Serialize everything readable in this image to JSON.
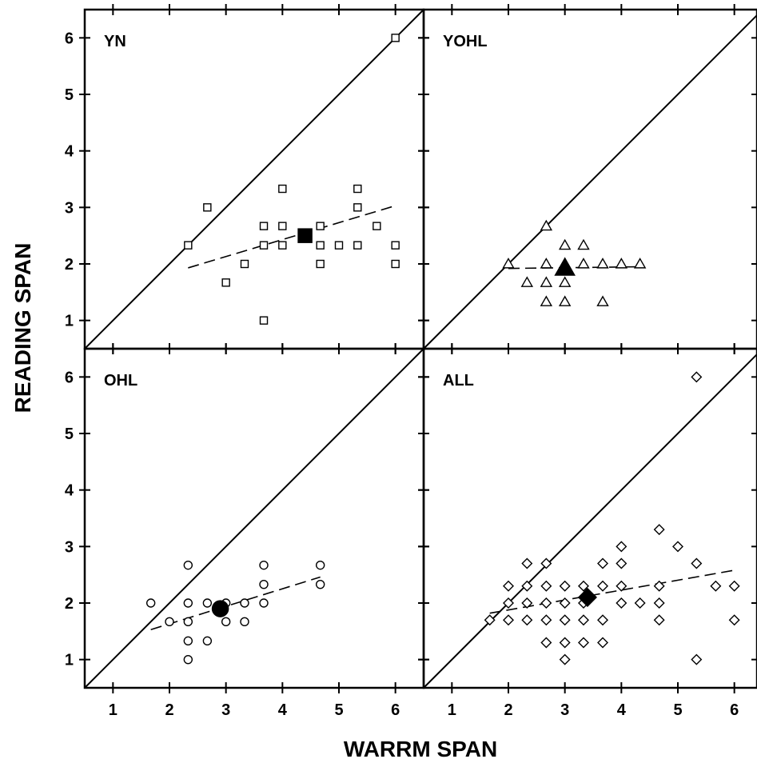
{
  "chart_data": {
    "type": "scatter",
    "xlabel": "WARRM SPAN",
    "ylabel": "READING SPAN",
    "xlim": [
      0.5,
      6.5
    ],
    "ylim": [
      0.5,
      6.5
    ],
    "xticks": [
      1,
      2,
      3,
      4,
      5,
      6
    ],
    "yticks": [
      1,
      2,
      3,
      4,
      5,
      6
    ],
    "grid": false,
    "identity_line": true,
    "panels": [
      {
        "label": "YN",
        "marker": "square",
        "points": [
          [
            2.33,
            2.33
          ],
          [
            2.67,
            3.0
          ],
          [
            3.0,
            1.67
          ],
          [
            3.33,
            2.0
          ],
          [
            3.67,
            2.33
          ],
          [
            3.67,
            2.67
          ],
          [
            3.67,
            1.0
          ],
          [
            4.0,
            2.33
          ],
          [
            4.0,
            2.67
          ],
          [
            4.0,
            3.33
          ],
          [
            4.67,
            2.33
          ],
          [
            4.67,
            2.67
          ],
          [
            4.67,
            2.0
          ],
          [
            5.0,
            2.33
          ],
          [
            5.33,
            2.33
          ],
          [
            5.33,
            3.0
          ],
          [
            5.33,
            3.33
          ],
          [
            5.67,
            2.67
          ],
          [
            6.0,
            2.33
          ],
          [
            6.0,
            2.0
          ],
          [
            6.0,
            6.0
          ]
        ],
        "mean": [
          4.4,
          2.5
        ],
        "fit": [
          [
            2.33,
            1.93
          ],
          [
            6.0,
            3.03
          ]
        ]
      },
      {
        "label": "YOHL",
        "marker": "triangle",
        "points": [
          [
            2.0,
            2.0
          ],
          [
            2.33,
            1.67
          ],
          [
            2.67,
            1.33
          ],
          [
            2.67,
            1.67
          ],
          [
            2.67,
            2.0
          ],
          [
            2.67,
            2.67
          ],
          [
            3.0,
            1.33
          ],
          [
            3.0,
            1.67
          ],
          [
            3.0,
            2.0
          ],
          [
            3.0,
            2.33
          ],
          [
            3.33,
            2.0
          ],
          [
            3.33,
            2.33
          ],
          [
            3.67,
            1.33
          ],
          [
            3.67,
            2.0
          ],
          [
            4.0,
            2.0
          ],
          [
            4.33,
            2.0
          ]
        ],
        "mean": [
          3.0,
          1.93
        ],
        "fit": [
          [
            2.0,
            1.92
          ],
          [
            4.33,
            1.95
          ]
        ]
      },
      {
        "label": "OHL",
        "marker": "circle",
        "points": [
          [
            1.67,
            2.0
          ],
          [
            2.0,
            1.67
          ],
          [
            2.33,
            2.67
          ],
          [
            2.33,
            2.0
          ],
          [
            2.33,
            1.67
          ],
          [
            2.33,
            1.33
          ],
          [
            2.33,
            1.0
          ],
          [
            2.67,
            2.0
          ],
          [
            2.67,
            1.33
          ],
          [
            3.0,
            2.0
          ],
          [
            3.0,
            1.67
          ],
          [
            3.33,
            2.0
          ],
          [
            3.33,
            1.67
          ],
          [
            3.67,
            2.67
          ],
          [
            3.67,
            2.33
          ],
          [
            3.67,
            2.0
          ],
          [
            4.67,
            2.67
          ],
          [
            4.67,
            2.33
          ]
        ],
        "mean": [
          2.9,
          1.9
        ],
        "fit": [
          [
            1.67,
            1.53
          ],
          [
            4.67,
            2.46
          ]
        ]
      },
      {
        "label": "ALL",
        "marker": "diamond",
        "points": [
          [
            1.67,
            1.7
          ],
          [
            2.0,
            1.7
          ],
          [
            2.0,
            2.0
          ],
          [
            2.0,
            2.3
          ],
          [
            2.33,
            1.7
          ],
          [
            2.33,
            2.0
          ],
          [
            2.33,
            2.3
          ],
          [
            2.33,
            2.7
          ],
          [
            2.67,
            1.3
          ],
          [
            2.67,
            1.7
          ],
          [
            2.67,
            2.0
          ],
          [
            2.67,
            2.3
          ],
          [
            2.67,
            2.7
          ],
          [
            3.0,
            1.0
          ],
          [
            3.0,
            1.3
          ],
          [
            3.0,
            1.7
          ],
          [
            3.0,
            2.0
          ],
          [
            3.0,
            2.3
          ],
          [
            3.33,
            1.3
          ],
          [
            3.33,
            1.7
          ],
          [
            3.33,
            2.0
          ],
          [
            3.33,
            2.3
          ],
          [
            3.67,
            1.3
          ],
          [
            3.67,
            1.7
          ],
          [
            3.67,
            2.3
          ],
          [
            3.67,
            2.7
          ],
          [
            4.0,
            2.0
          ],
          [
            4.0,
            2.3
          ],
          [
            4.0,
            2.7
          ],
          [
            4.0,
            3.0
          ],
          [
            4.33,
            2.0
          ],
          [
            4.67,
            1.7
          ],
          [
            4.67,
            2.0
          ],
          [
            4.67,
            2.3
          ],
          [
            4.67,
            3.3
          ],
          [
            5.0,
            3.0
          ],
          [
            5.33,
            1.0
          ],
          [
            5.33,
            2.7
          ],
          [
            5.33,
            6.0
          ],
          [
            5.67,
            2.3
          ],
          [
            6.0,
            1.7
          ],
          [
            6.0,
            2.3
          ]
        ],
        "mean": [
          3.4,
          2.1
        ],
        "fit": [
          [
            1.67,
            1.82
          ],
          [
            6.0,
            2.58
          ]
        ]
      }
    ]
  }
}
